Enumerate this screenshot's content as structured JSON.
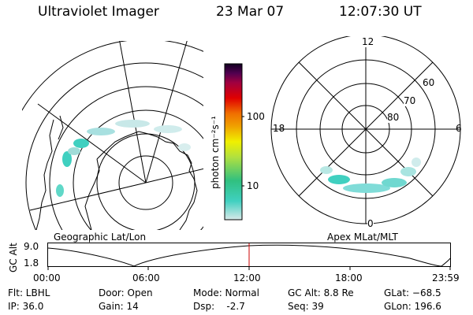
{
  "header": {
    "title": "Ultraviolet Imager",
    "date": "23 Mar 07",
    "time": "12:07:30 UT"
  },
  "left_panel": {
    "caption": "Geographic Lat/Lon"
  },
  "right_panel": {
    "caption": "Apex MLat/MLT",
    "mlt_labels": {
      "top": "12",
      "left": "18",
      "right": "6",
      "bottom": "0"
    },
    "lat_labels": [
      "60",
      "70",
      "80"
    ]
  },
  "colorbar": {
    "unit_label": "photon cm⁻²s⁻¹",
    "tick_labels": [
      "100",
      "10"
    ],
    "colors": [
      "#d8e8e8",
      "#40d0c0",
      "#30c080",
      "#b0e040",
      "#f0f000",
      "#f0a000",
      "#f07000",
      "#e00000",
      "#a00040",
      "#500050",
      "#100020"
    ]
  },
  "altitude_plot": {
    "ylabel": "GC Alt",
    "ymax_label": "9.0",
    "ymin_label": "1.8",
    "x_ticks": [
      "00:00",
      "06:00",
      "12:00",
      "18:00",
      "23:59"
    ],
    "current_time_color": "#cc0000"
  },
  "status": {
    "flt": "Flt: LBHL",
    "ip": "IP: 36.0",
    "door": "Door: Open",
    "gain": "Gain: 14",
    "mode": "Mode: Normal",
    "dsp": "Dsp:    -2.7",
    "gc_alt": "GC Alt: 8.8 Re",
    "seq": "Seq: 39",
    "glat": "GLat: −68.5",
    "glon": "GLon: 196.6"
  }
}
